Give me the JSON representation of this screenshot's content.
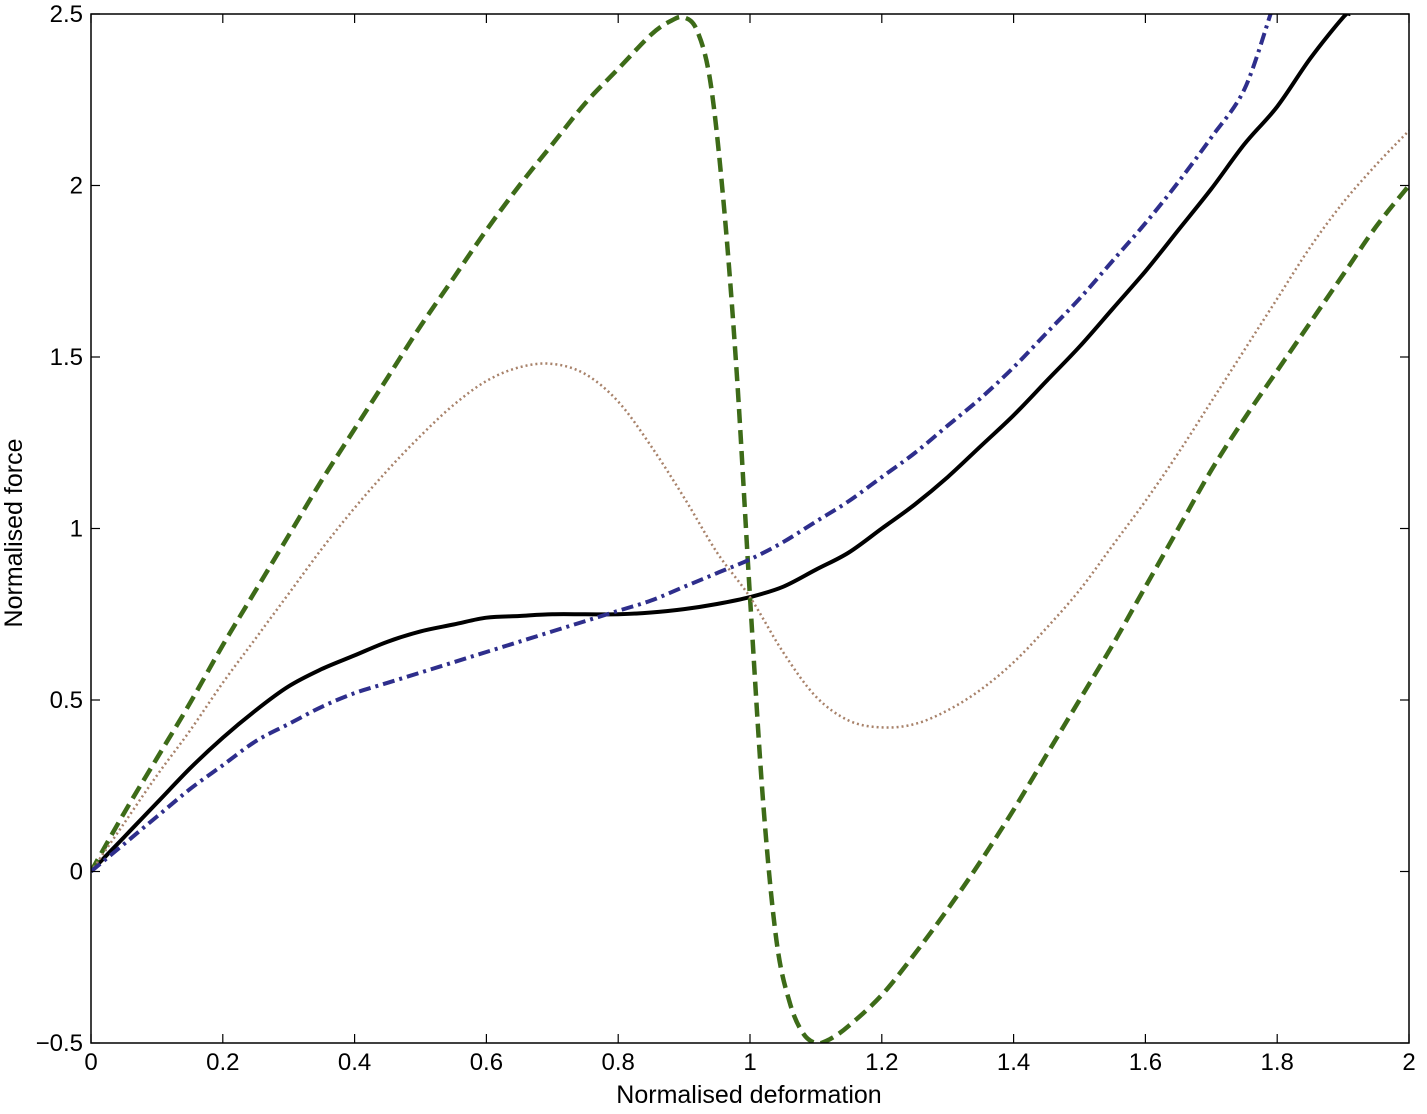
{
  "chart_data": {
    "type": "line",
    "title": "",
    "xlabel": "Normalised deformation",
    "ylabel": "Normalised force",
    "xlim": [
      0,
      2
    ],
    "ylim": [
      -0.5,
      2.5
    ],
    "grid": false,
    "legend": "none",
    "x_ticks": [
      {
        "value": 0,
        "label": "0"
      },
      {
        "value": 0.2,
        "label": "0.2"
      },
      {
        "value": 0.4,
        "label": "0.4"
      },
      {
        "value": 0.6,
        "label": "0.6"
      },
      {
        "value": 0.8,
        "label": "0.8"
      },
      {
        "value": 1,
        "label": "1"
      },
      {
        "value": 1.2,
        "label": "1.2"
      },
      {
        "value": 1.4,
        "label": "1.4"
      },
      {
        "value": 1.6,
        "label": "1.6"
      },
      {
        "value": 1.8,
        "label": "1.8"
      },
      {
        "value": 2,
        "label": "2"
      }
    ],
    "y_ticks": [
      {
        "value": -0.5,
        "label": "−0.5"
      },
      {
        "value": 0,
        "label": "0"
      },
      {
        "value": 0.5,
        "label": "0.5"
      },
      {
        "value": 1,
        "label": "1"
      },
      {
        "value": 1.5,
        "label": "1.5"
      },
      {
        "value": 2,
        "label": "2"
      },
      {
        "value": 2.5,
        "label": "2.5"
      }
    ],
    "series": [
      {
        "style": "solid",
        "color": "#000000",
        "x": [
          0,
          0.05,
          0.1,
          0.15,
          0.2,
          0.25,
          0.3,
          0.35,
          0.4,
          0.45,
          0.5,
          0.55,
          0.6,
          0.65,
          0.7,
          0.75,
          0.8,
          0.85,
          0.9,
          0.95,
          1.0,
          1.05,
          1.1,
          1.15,
          1.2,
          1.25,
          1.3,
          1.35,
          1.4,
          1.45,
          1.5,
          1.55,
          1.6,
          1.65,
          1.7,
          1.75,
          1.8,
          1.85,
          1.9,
          1.91
        ],
        "y": [
          0,
          0.1,
          0.2,
          0.3,
          0.39,
          0.47,
          0.54,
          0.59,
          0.63,
          0.67,
          0.7,
          0.72,
          0.74,
          0.745,
          0.75,
          0.75,
          0.75,
          0.755,
          0.765,
          0.78,
          0.8,
          0.83,
          0.88,
          0.93,
          1.0,
          1.07,
          1.15,
          1.24,
          1.33,
          1.43,
          1.53,
          1.64,
          1.75,
          1.87,
          1.99,
          2.12,
          2.23,
          2.37,
          2.49,
          2.5
        ]
      },
      {
        "style": "dashed",
        "color": "#3d6b18",
        "x": [
          0,
          0.05,
          0.1,
          0.15,
          0.2,
          0.25,
          0.3,
          0.35,
          0.4,
          0.45,
          0.5,
          0.55,
          0.6,
          0.65,
          0.7,
          0.75,
          0.8,
          0.85,
          0.88,
          0.9,
          0.92,
          0.94,
          0.96,
          0.98,
          1.0,
          1.02,
          1.04,
          1.06,
          1.08,
          1.1,
          1.12,
          1.15,
          1.2,
          1.25,
          1.3,
          1.35,
          1.4,
          1.45,
          1.5,
          1.55,
          1.6,
          1.65,
          1.7,
          1.75,
          1.8,
          1.85,
          1.9,
          1.95,
          2.0
        ],
        "y": [
          0,
          0.17,
          0.33,
          0.49,
          0.66,
          0.82,
          0.98,
          1.14,
          1.29,
          1.44,
          1.59,
          1.73,
          1.87,
          2.0,
          2.12,
          2.24,
          2.34,
          2.44,
          2.48,
          2.49,
          2.45,
          2.3,
          1.95,
          1.45,
          0.8,
          0.2,
          -0.2,
          -0.38,
          -0.47,
          -0.5,
          -0.49,
          -0.45,
          -0.36,
          -0.24,
          -0.11,
          0.03,
          0.18,
          0.34,
          0.5,
          0.66,
          0.83,
          1.0,
          1.17,
          1.32,
          1.46,
          1.6,
          1.74,
          1.88,
          2.0
        ]
      },
      {
        "style": "dotted",
        "color": "#a8826a",
        "x": [
          0,
          0.05,
          0.1,
          0.15,
          0.2,
          0.25,
          0.3,
          0.35,
          0.4,
          0.45,
          0.5,
          0.55,
          0.6,
          0.65,
          0.7,
          0.75,
          0.8,
          0.85,
          0.9,
          0.95,
          1.0,
          1.05,
          1.1,
          1.15,
          1.2,
          1.25,
          1.3,
          1.35,
          1.4,
          1.45,
          1.5,
          1.55,
          1.6,
          1.65,
          1.7,
          1.75,
          1.8,
          1.85,
          1.9,
          1.95,
          2.0
        ],
        "y": [
          0,
          0.14,
          0.28,
          0.41,
          0.55,
          0.68,
          0.81,
          0.94,
          1.06,
          1.17,
          1.27,
          1.36,
          1.43,
          1.47,
          1.48,
          1.45,
          1.37,
          1.24,
          1.09,
          0.93,
          0.8,
          0.64,
          0.51,
          0.44,
          0.42,
          0.43,
          0.47,
          0.53,
          0.61,
          0.71,
          0.82,
          0.95,
          1.08,
          1.22,
          1.37,
          1.52,
          1.67,
          1.82,
          1.95,
          2.06,
          2.16
        ]
      },
      {
        "style": "dash-dot",
        "color": "#2e2e8c",
        "x": [
          0,
          0.05,
          0.1,
          0.15,
          0.2,
          0.25,
          0.3,
          0.35,
          0.4,
          0.45,
          0.5,
          0.55,
          0.6,
          0.65,
          0.7,
          0.75,
          0.8,
          0.85,
          0.9,
          0.95,
          1.0,
          1.05,
          1.1,
          1.15,
          1.2,
          1.25,
          1.3,
          1.35,
          1.4,
          1.45,
          1.5,
          1.55,
          1.6,
          1.65,
          1.7,
          1.75,
          1.79
        ],
        "y": [
          0,
          0.08,
          0.16,
          0.24,
          0.31,
          0.38,
          0.43,
          0.48,
          0.52,
          0.55,
          0.58,
          0.61,
          0.64,
          0.67,
          0.7,
          0.73,
          0.76,
          0.79,
          0.83,
          0.87,
          0.91,
          0.96,
          1.02,
          1.08,
          1.15,
          1.22,
          1.3,
          1.38,
          1.47,
          1.57,
          1.67,
          1.78,
          1.89,
          2.01,
          2.14,
          2.28,
          2.5
        ]
      }
    ]
  }
}
